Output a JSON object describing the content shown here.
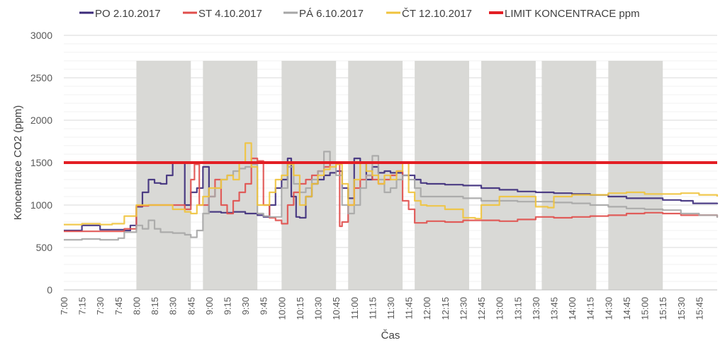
{
  "chart_data": {
    "type": "line",
    "xlabel": "Čas",
    "ylabel": "Koncentrace CO2 (ppm)",
    "ylim": [
      0,
      3000
    ],
    "yticks": [
      0,
      500,
      1000,
      1500,
      2000,
      2500,
      3000
    ],
    "xlim": [
      "7:00",
      "16:00"
    ],
    "x_tick_labels": [
      "7:00",
      "7:15",
      "7:30",
      "7:45",
      "8:00",
      "8:15",
      "8:30",
      "8:45",
      "9:00",
      "9:15",
      "9:30",
      "9:45",
      "10:00",
      "10:15",
      "10:30",
      "10:45",
      "11:00",
      "11:15",
      "11:30",
      "11:45",
      "12:00",
      "12:15",
      "12:30",
      "12:45",
      "13:00",
      "13:15",
      "13:30",
      "13:45",
      "14:00",
      "14:15",
      "14:30",
      "14:45",
      "15:00",
      "15:15",
      "15:30",
      "15:45"
    ],
    "grid": true,
    "legend_position": "top",
    "shaded_periods": [
      [
        "8:00",
        "8:45"
      ],
      [
        "8:55",
        "9:40"
      ],
      [
        "10:00",
        "10:45"
      ],
      [
        "10:55",
        "11:40"
      ],
      [
        "11:50",
        "12:35"
      ],
      [
        "12:45",
        "13:30"
      ],
      [
        "13:35",
        "14:20"
      ],
      [
        "14:30",
        "15:15"
      ]
    ],
    "shade_color": "#d9d9d6",
    "series": [
      {
        "name": "PO 2.10.2017",
        "color": "#3b2a7a",
        "points": [
          [
            "7:00",
            700
          ],
          [
            "7:10",
            700
          ],
          [
            "7:15",
            760
          ],
          [
            "7:25",
            760
          ],
          [
            "7:30",
            710
          ],
          [
            "7:45",
            710
          ],
          [
            "7:50",
            700
          ],
          [
            "7:55",
            760
          ],
          [
            "8:00",
            980
          ],
          [
            "8:05",
            1150
          ],
          [
            "8:10",
            1300
          ],
          [
            "8:15",
            1260
          ],
          [
            "8:20",
            1250
          ],
          [
            "8:25",
            1350
          ],
          [
            "8:30",
            1500
          ],
          [
            "8:35",
            1500
          ],
          [
            "8:40",
            1000
          ],
          [
            "8:45",
            1150
          ],
          [
            "8:50",
            1200
          ],
          [
            "8:55",
            1450
          ],
          [
            "9:00",
            920
          ],
          [
            "9:10",
            910
          ],
          [
            "9:20",
            920
          ],
          [
            "9:30",
            900
          ],
          [
            "9:40",
            880
          ],
          [
            "9:45",
            860
          ],
          [
            "9:50",
            1000
          ],
          [
            "9:55",
            1200
          ],
          [
            "10:00",
            1300
          ],
          [
            "10:05",
            1550
          ],
          [
            "10:08",
            1100
          ],
          [
            "10:12",
            860
          ],
          [
            "10:15",
            850
          ],
          [
            "10:20",
            1100
          ],
          [
            "10:25",
            1250
          ],
          [
            "10:30",
            1300
          ],
          [
            "10:35",
            1350
          ],
          [
            "10:40",
            1380
          ],
          [
            "10:45",
            1400
          ],
          [
            "10:50",
            1200
          ],
          [
            "10:55",
            1080
          ],
          [
            "11:00",
            1550
          ],
          [
            "11:05",
            1500
          ],
          [
            "11:10",
            1300
          ],
          [
            "11:15",
            1450
          ],
          [
            "11:20",
            1380
          ],
          [
            "11:25",
            1400
          ],
          [
            "11:30",
            1380
          ],
          [
            "11:35",
            1380
          ],
          [
            "11:40",
            1350
          ],
          [
            "11:45",
            1350
          ],
          [
            "11:50",
            1300
          ],
          [
            "11:55",
            1260
          ],
          [
            "12:00",
            1250
          ],
          [
            "12:15",
            1240
          ],
          [
            "12:30",
            1230
          ],
          [
            "12:45",
            1200
          ],
          [
            "13:00",
            1180
          ],
          [
            "13:15",
            1160
          ],
          [
            "13:30",
            1150
          ],
          [
            "13:45",
            1140
          ],
          [
            "14:00",
            1130
          ],
          [
            "14:15",
            1120
          ],
          [
            "14:30",
            1100
          ],
          [
            "14:45",
            1080
          ],
          [
            "15:00",
            1080
          ],
          [
            "15:15",
            1060
          ],
          [
            "15:30",
            1050
          ],
          [
            "15:40",
            1020
          ],
          [
            "15:50",
            1020
          ],
          [
            "16:00",
            1010
          ]
        ]
      },
      {
        "name": "ST 4.10.2017",
        "color": "#e04e4b",
        "points": [
          [
            "7:00",
            690
          ],
          [
            "7:15",
            690
          ],
          [
            "7:30",
            690
          ],
          [
            "7:45",
            690
          ],
          [
            "7:50",
            720
          ],
          [
            "8:00",
            990
          ],
          [
            "8:10",
            1000
          ],
          [
            "8:20",
            1000
          ],
          [
            "8:30",
            1000
          ],
          [
            "8:40",
            950
          ],
          [
            "8:45",
            1300
          ],
          [
            "8:48",
            1480
          ],
          [
            "8:52",
            1000
          ],
          [
            "9:00",
            1100
          ],
          [
            "9:05",
            1300
          ],
          [
            "9:10",
            1000
          ],
          [
            "9:15",
            900
          ],
          [
            "9:20",
            1050
          ],
          [
            "9:25",
            1150
          ],
          [
            "9:30",
            1250
          ],
          [
            "9:35",
            1550
          ],
          [
            "9:40",
            1520
          ],
          [
            "9:45",
            1000
          ],
          [
            "9:50",
            850
          ],
          [
            "9:55",
            820
          ],
          [
            "10:00",
            780
          ],
          [
            "10:05",
            1000
          ],
          [
            "10:10",
            1150
          ],
          [
            "10:15",
            1250
          ],
          [
            "10:20",
            1300
          ],
          [
            "10:25",
            1350
          ],
          [
            "10:30",
            1400
          ],
          [
            "10:35",
            1450
          ],
          [
            "10:40",
            1500
          ],
          [
            "10:45",
            1500
          ],
          [
            "10:48",
            750
          ],
          [
            "10:50",
            800
          ],
          [
            "10:55",
            1000
          ],
          [
            "11:00",
            1200
          ],
          [
            "11:05",
            1300
          ],
          [
            "11:10",
            1350
          ],
          [
            "11:15",
            1300
          ],
          [
            "11:20",
            1250
          ],
          [
            "11:25",
            1300
          ],
          [
            "11:30",
            1350
          ],
          [
            "11:35",
            1400
          ],
          [
            "11:40",
            1050
          ],
          [
            "11:45",
            950
          ],
          [
            "11:50",
            790
          ],
          [
            "12:00",
            810
          ],
          [
            "12:15",
            800
          ],
          [
            "12:30",
            820
          ],
          [
            "12:45",
            820
          ],
          [
            "13:00",
            810
          ],
          [
            "13:15",
            830
          ],
          [
            "13:30",
            860
          ],
          [
            "13:45",
            850
          ],
          [
            "14:00",
            860
          ],
          [
            "14:15",
            870
          ],
          [
            "14:30",
            880
          ],
          [
            "14:45",
            900
          ],
          [
            "15:00",
            910
          ],
          [
            "15:15",
            900
          ],
          [
            "15:30",
            880
          ],
          [
            "15:45",
            880
          ],
          [
            "16:00",
            860
          ]
        ]
      },
      {
        "name": "PÁ 6.10.2017",
        "color": "#a6a6a6",
        "points": [
          [
            "7:00",
            590
          ],
          [
            "7:15",
            600
          ],
          [
            "7:30",
            590
          ],
          [
            "7:45",
            610
          ],
          [
            "7:50",
            680
          ],
          [
            "8:00",
            760
          ],
          [
            "8:05",
            720
          ],
          [
            "8:10",
            820
          ],
          [
            "8:15",
            720
          ],
          [
            "8:20",
            680
          ],
          [
            "8:30",
            670
          ],
          [
            "8:40",
            650
          ],
          [
            "8:45",
            620
          ],
          [
            "8:50",
            700
          ],
          [
            "8:55",
            900
          ],
          [
            "9:00",
            1100
          ],
          [
            "9:05",
            1200
          ],
          [
            "9:10",
            1300
          ],
          [
            "9:15",
            1350
          ],
          [
            "9:20",
            1400
          ],
          [
            "9:25",
            1430
          ],
          [
            "9:30",
            1450
          ],
          [
            "9:35",
            1480
          ],
          [
            "9:40",
            900
          ],
          [
            "9:45",
            870
          ],
          [
            "9:50",
            860
          ],
          [
            "9:55",
            860
          ],
          [
            "10:00",
            1200
          ],
          [
            "10:05",
            1450
          ],
          [
            "10:10",
            1250
          ],
          [
            "10:15",
            1150
          ],
          [
            "10:20",
            1200
          ],
          [
            "10:25",
            1300
          ],
          [
            "10:30",
            1400
          ],
          [
            "10:35",
            1630
          ],
          [
            "10:40",
            1500
          ],
          [
            "10:45",
            1350
          ],
          [
            "10:50",
            1000
          ],
          [
            "10:55",
            900
          ],
          [
            "11:00",
            1000
          ],
          [
            "11:05",
            1200
          ],
          [
            "11:10",
            1350
          ],
          [
            "11:15",
            1580
          ],
          [
            "11:20",
            1300
          ],
          [
            "11:25",
            1150
          ],
          [
            "11:30",
            1200
          ],
          [
            "11:35",
            1300
          ],
          [
            "11:40",
            1350
          ],
          [
            "11:45",
            1300
          ],
          [
            "11:50",
            1200
          ],
          [
            "11:55",
            1100
          ],
          [
            "12:00",
            1100
          ],
          [
            "12:15",
            1100
          ],
          [
            "12:30",
            1080
          ],
          [
            "12:45",
            1050
          ],
          [
            "13:00",
            1050
          ],
          [
            "13:15",
            1040
          ],
          [
            "13:30",
            1040
          ],
          [
            "13:45",
            1030
          ],
          [
            "14:00",
            1020
          ],
          [
            "14:15",
            1000
          ],
          [
            "14:30",
            980
          ],
          [
            "14:45",
            960
          ],
          [
            "15:00",
            950
          ],
          [
            "15:15",
            940
          ],
          [
            "15:30",
            900
          ],
          [
            "15:45",
            880
          ],
          [
            "16:00",
            850
          ]
        ]
      },
      {
        "name": "ČT 12.10.2017",
        "color": "#f0c33c",
        "points": [
          [
            "7:00",
            770
          ],
          [
            "7:15",
            780
          ],
          [
            "7:30",
            770
          ],
          [
            "7:40",
            780
          ],
          [
            "7:50",
            870
          ],
          [
            "8:00",
            1000
          ],
          [
            "8:10",
            1000
          ],
          [
            "8:20",
            1000
          ],
          [
            "8:30",
            950
          ],
          [
            "8:40",
            920
          ],
          [
            "8:45",
            900
          ],
          [
            "8:50",
            1000
          ],
          [
            "8:55",
            1100
          ],
          [
            "9:00",
            1200
          ],
          [
            "9:10",
            1300
          ],
          [
            "9:15",
            1350
          ],
          [
            "9:20",
            1300
          ],
          [
            "9:25",
            1500
          ],
          [
            "9:30",
            1730
          ],
          [
            "9:35",
            1450
          ],
          [
            "9:40",
            1000
          ],
          [
            "9:45",
            1000
          ],
          [
            "9:50",
            1150
          ],
          [
            "9:55",
            1300
          ],
          [
            "10:00",
            1350
          ],
          [
            "10:05",
            1480
          ],
          [
            "10:10",
            1350
          ],
          [
            "10:15",
            1000
          ],
          [
            "10:20",
            1100
          ],
          [
            "10:25",
            1250
          ],
          [
            "10:30",
            1350
          ],
          [
            "10:35",
            1420
          ],
          [
            "10:40",
            1450
          ],
          [
            "10:45",
            1480
          ],
          [
            "10:50",
            1250
          ],
          [
            "10:55",
            1000
          ],
          [
            "11:00",
            1300
          ],
          [
            "11:05",
            1500
          ],
          [
            "11:10",
            1400
          ],
          [
            "11:15",
            1350
          ],
          [
            "11:20",
            1250
          ],
          [
            "11:25",
            1350
          ],
          [
            "11:30",
            1300
          ],
          [
            "11:35",
            1400
          ],
          [
            "11:40",
            1500
          ],
          [
            "11:45",
            1150
          ],
          [
            "11:50",
            1050
          ],
          [
            "11:55",
            1000
          ],
          [
            "12:00",
            990
          ],
          [
            "12:15",
            950
          ],
          [
            "12:30",
            850
          ],
          [
            "12:40",
            840
          ],
          [
            "12:45",
            1000
          ],
          [
            "13:00",
            1100
          ],
          [
            "13:15",
            1100
          ],
          [
            "13:30",
            980
          ],
          [
            "13:40",
            970
          ],
          [
            "13:45",
            1100
          ],
          [
            "14:00",
            1120
          ],
          [
            "14:15",
            1120
          ],
          [
            "14:30",
            1140
          ],
          [
            "14:45",
            1150
          ],
          [
            "15:00",
            1130
          ],
          [
            "15:15",
            1130
          ],
          [
            "15:30",
            1140
          ],
          [
            "15:45",
            1120
          ],
          [
            "16:00",
            1100
          ]
        ]
      },
      {
        "name": "LIMIT KONCENTRACE ppm",
        "color": "#e31e24",
        "points": [
          [
            "7:00",
            1500
          ],
          [
            "16:00",
            1500
          ]
        ]
      }
    ]
  }
}
